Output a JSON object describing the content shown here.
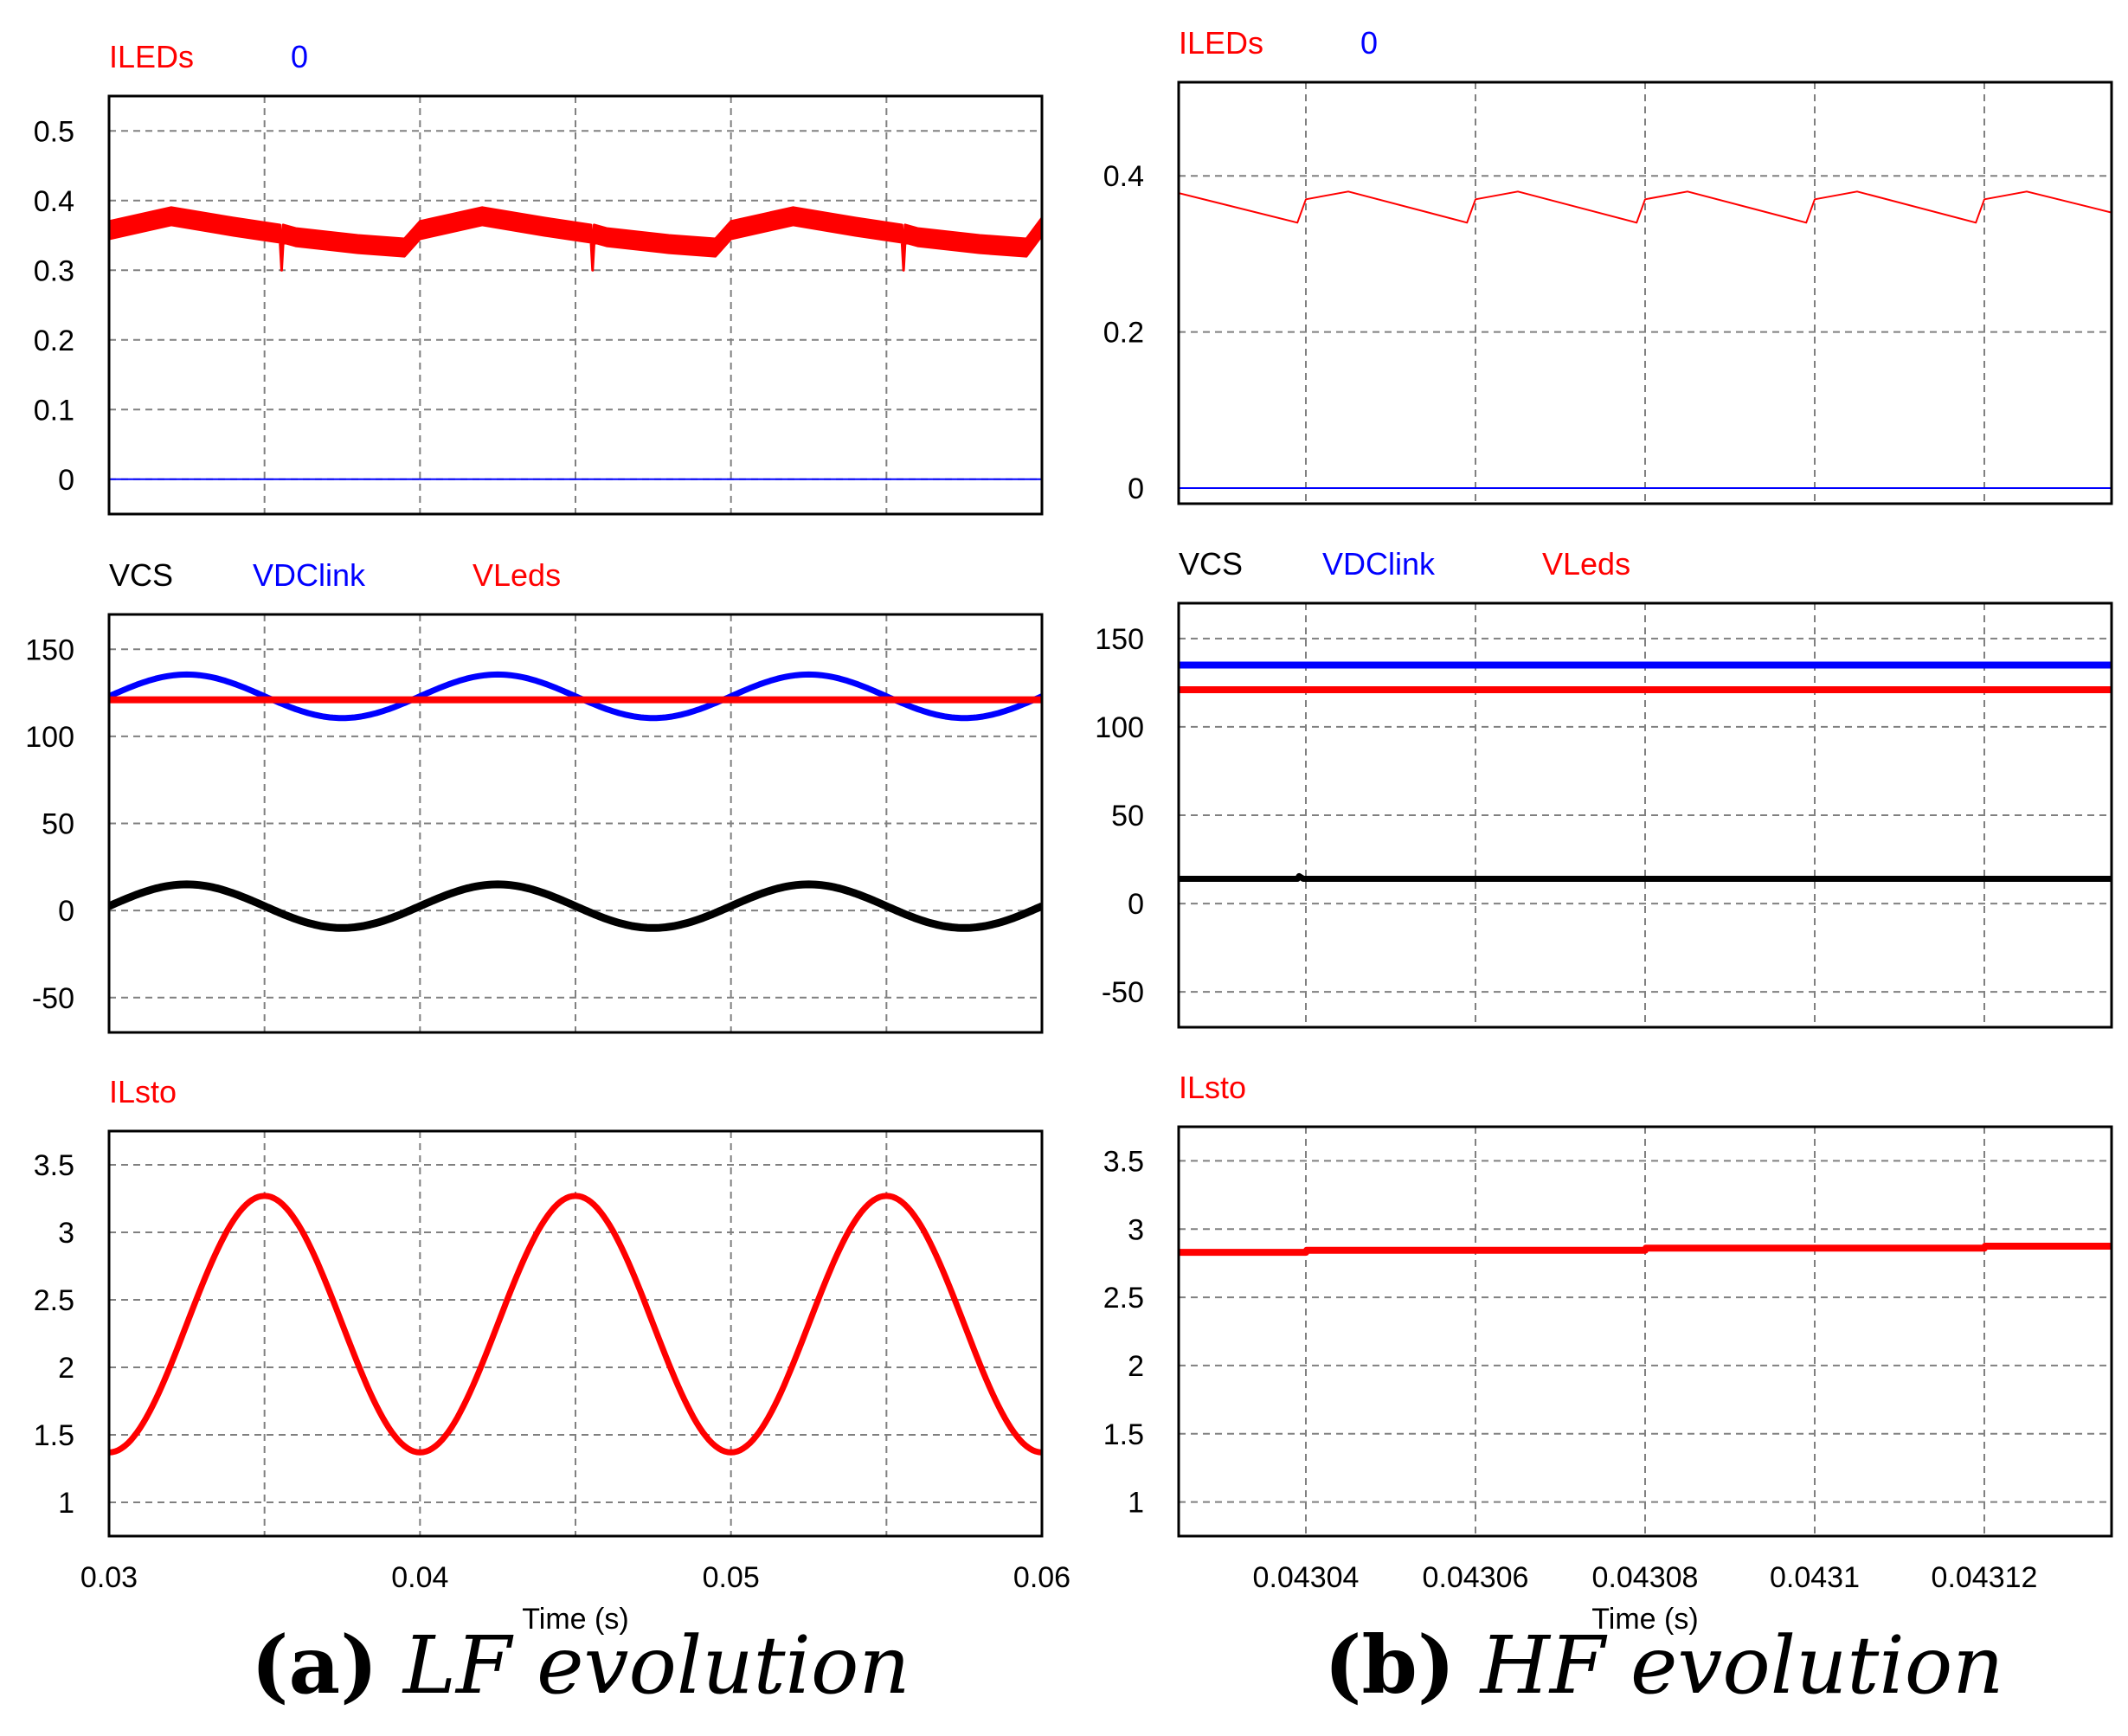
{
  "colors": {
    "red": "#ff0000",
    "blue": "#0000ff",
    "black": "#000000",
    "grid": "#808080"
  },
  "captions": [
    {
      "letter": "(a)",
      "text": "LF evolution"
    },
    {
      "letter": "(b)",
      "text": "HF evolution"
    }
  ],
  "chart_data": [
    {
      "id": "a-top",
      "type": "line",
      "panel": "a",
      "legend": [
        {
          "name": "ILEDs",
          "color": "#ff0000"
        },
        {
          "name": "0",
          "color": "#0000ff"
        }
      ],
      "xlim": [
        0.03,
        0.06
      ],
      "ylim": [
        -0.05,
        0.55
      ],
      "yticks": [
        0,
        0.1,
        0.2,
        0.3,
        0.4,
        0.5
      ],
      "ytick_labels": [
        "0",
        "0.1",
        "0.2",
        "0.3",
        "0.4",
        "0.5"
      ],
      "xgrid": [
        0.035,
        0.04,
        0.045,
        0.05,
        0.055
      ],
      "series": [
        {
          "name": "ILEDs",
          "color": "#ff0000",
          "kind": "band",
          "lower_offset": -0.025,
          "upper_offset": 0.0,
          "x": [
            0.03,
            0.032,
            0.034,
            0.0355,
            0.03555,
            0.0356,
            0.036,
            0.038,
            0.0395,
            0.04,
            0.042,
            0.044,
            0.0455,
            0.04555,
            0.0456,
            0.046,
            0.048,
            0.0495,
            0.05,
            0.052,
            0.054,
            0.0555,
            0.05555,
            0.0556,
            0.056,
            0.058,
            0.0595,
            0.06
          ],
          "y": [
            0.37,
            0.39,
            0.375,
            0.365,
            0.325,
            0.365,
            0.36,
            0.35,
            0.345,
            0.37,
            0.39,
            0.375,
            0.365,
            0.325,
            0.365,
            0.36,
            0.35,
            0.345,
            0.37,
            0.39,
            0.375,
            0.365,
            0.325,
            0.365,
            0.36,
            0.35,
            0.345,
            0.375
          ]
        },
        {
          "name": "0",
          "color": "#0000ff",
          "width": 2,
          "x": [
            0.03,
            0.06
          ],
          "y": [
            0,
            0
          ]
        }
      ]
    },
    {
      "id": "a-mid",
      "type": "line",
      "panel": "a",
      "legend": [
        {
          "name": "VCS",
          "color": "#000000"
        },
        {
          "name": "VDClink",
          "color": "#0000ff"
        },
        {
          "name": "VLeds",
          "color": "#ff0000"
        }
      ],
      "xlim": [
        0.03,
        0.06
      ],
      "ylim": [
        -70,
        170
      ],
      "yticks": [
        -50,
        0,
        50,
        100,
        150
      ],
      "ytick_labels": [
        "-50",
        "0",
        "50",
        "100",
        "150"
      ],
      "xgrid": [
        0.035,
        0.04,
        0.045,
        0.05,
        0.055
      ],
      "series": [
        {
          "name": "VDClink",
          "color": "#0000ff",
          "width": 7,
          "func": "sin",
          "offset": 123,
          "amp": 12.5,
          "period": 0.01,
          "phase0": 0.03
        },
        {
          "name": "VLeds",
          "color": "#ff0000",
          "width": 8,
          "x": [
            0.03,
            0.06
          ],
          "y": [
            121,
            121
          ]
        },
        {
          "name": "VCS",
          "color": "#000000",
          "width": 9,
          "func": "sin",
          "offset": 2.5,
          "amp": 12.5,
          "period": 0.01,
          "phase0": 0.03
        }
      ]
    },
    {
      "id": "a-bot",
      "type": "line",
      "panel": "a",
      "legend": [
        {
          "name": "ILsto",
          "color": "#ff0000"
        }
      ],
      "xlim": [
        0.03,
        0.06
      ],
      "ylim": [
        0.75,
        3.75
      ],
      "yticks": [
        1,
        1.5,
        2,
        2.5,
        3,
        3.5
      ],
      "ytick_labels": [
        "1",
        "1.5",
        "2",
        "2.5",
        "3",
        "3.5"
      ],
      "xticks": [
        0.03,
        0.04,
        0.05,
        0.06
      ],
      "xtick_labels": [
        "0.03",
        "0.04",
        "0.05",
        "0.06"
      ],
      "xgrid": [
        0.035,
        0.04,
        0.045,
        0.05,
        0.055
      ],
      "xlabel": "Time (s)",
      "series": [
        {
          "name": "ILsto",
          "color": "#ff0000",
          "width": 7,
          "func": "negcos",
          "offset": 2.32,
          "amp": 0.95,
          "period": 0.01,
          "phase0": 0.03
        }
      ]
    },
    {
      "id": "b-top",
      "type": "line",
      "panel": "b",
      "legend": [
        {
          "name": "ILEDs",
          "color": "#ff0000"
        },
        {
          "name": "0",
          "color": "#0000ff"
        }
      ],
      "xlim": [
        0.043025,
        0.043135
      ],
      "ylim": [
        -0.02,
        0.52
      ],
      "yticks": [
        0,
        0.2,
        0.4
      ],
      "ytick_labels": [
        "0",
        "0.2",
        "0.4"
      ],
      "xgrid": [
        0.04304,
        0.04306,
        0.04308,
        0.0431,
        0.04312
      ],
      "series": [
        {
          "name": "ILEDs",
          "color": "#ff0000",
          "width": 2,
          "x": [
            0.043025,
            0.043039,
            0.04304,
            0.043045,
            0.043059,
            0.04306,
            0.043065,
            0.043079,
            0.04308,
            0.043085,
            0.043099,
            0.0431,
            0.043105,
            0.043119,
            0.04312,
            0.043125,
            0.043135
          ],
          "y": [
            0.378,
            0.34,
            0.37,
            0.38,
            0.34,
            0.37,
            0.38,
            0.34,
            0.37,
            0.38,
            0.34,
            0.37,
            0.38,
            0.34,
            0.37,
            0.38,
            0.353
          ]
        },
        {
          "name": "0",
          "color": "#0000ff",
          "width": 2,
          "x": [
            0.043025,
            0.043135
          ],
          "y": [
            0,
            0
          ]
        }
      ]
    },
    {
      "id": "b-mid",
      "type": "line",
      "panel": "b",
      "legend": [
        {
          "name": "VCS",
          "color": "#000000"
        },
        {
          "name": "VDClink",
          "color": "#0000ff"
        },
        {
          "name": "VLeds",
          "color": "#ff0000"
        }
      ],
      "xlim": [
        0.043025,
        0.043135
      ],
      "ylim": [
        -70,
        170
      ],
      "yticks": [
        -50,
        0,
        50,
        100,
        150
      ],
      "ytick_labels": [
        "-50",
        "0",
        "50",
        "100",
        "150"
      ],
      "xgrid": [
        0.04304,
        0.04306,
        0.04308,
        0.0431,
        0.04312
      ],
      "series": [
        {
          "name": "VDClink",
          "color": "#0000ff",
          "width": 8,
          "x": [
            0.043025,
            0.043135
          ],
          "y": [
            135,
            135
          ]
        },
        {
          "name": "VLeds",
          "color": "#ff0000",
          "width": 8,
          "x": [
            0.043025,
            0.043135
          ],
          "y": [
            121,
            121
          ]
        },
        {
          "name": "VCS",
          "color": "#000000",
          "width": 7,
          "x": [
            0.043025,
            0.043039,
            0.0430392,
            0.0430397,
            0.043135
          ],
          "y": [
            14,
            14,
            15.5,
            14,
            14
          ]
        }
      ]
    },
    {
      "id": "b-bot",
      "type": "line",
      "panel": "b",
      "legend": [
        {
          "name": "ILsto",
          "color": "#ff0000"
        }
      ],
      "xlim": [
        0.043025,
        0.043135
      ],
      "ylim": [
        0.75,
        3.75
      ],
      "yticks": [
        1,
        1.5,
        2,
        2.5,
        3,
        3.5
      ],
      "ytick_labels": [
        "1",
        "1.5",
        "2",
        "2.5",
        "3",
        "3.5"
      ],
      "xticks": [
        0.04304,
        0.04306,
        0.04308,
        0.0431,
        0.04312
      ],
      "xtick_labels": [
        "0.04304",
        "0.04306",
        "0.04308",
        "0.0431",
        "0.04312"
      ],
      "xgrid": [
        0.04304,
        0.04306,
        0.04308,
        0.0431,
        0.04312
      ],
      "xlabel": "Time (s)",
      "series": [
        {
          "name": "ILsto",
          "color": "#ff0000",
          "width": 8,
          "x": [
            0.043025,
            0.04304,
            0.0430401,
            0.04308,
            0.0430801,
            0.04312,
            0.0431201,
            0.043135
          ],
          "y": [
            2.83,
            2.83,
            2.845,
            2.845,
            2.86,
            2.86,
            2.875,
            2.875
          ]
        }
      ]
    }
  ]
}
